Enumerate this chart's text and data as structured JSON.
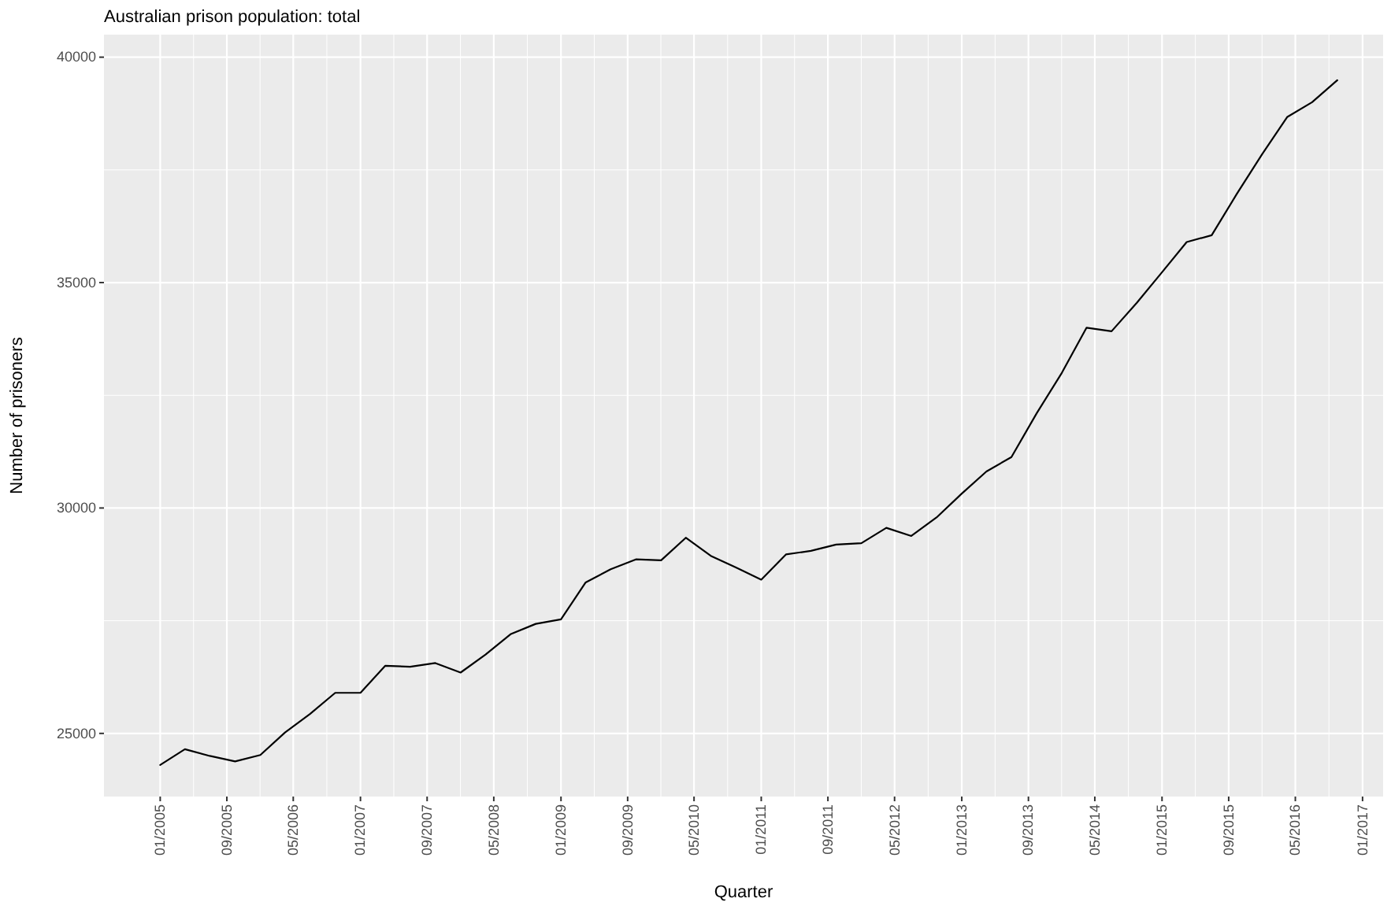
{
  "chart_data": {
    "type": "line",
    "title": "Australian prison population: total",
    "xlabel": "Quarter",
    "ylabel": "Number of prisoners",
    "x": [
      "2005-01",
      "2005-04",
      "2005-07",
      "2005-10",
      "2006-01",
      "2006-04",
      "2006-07",
      "2006-10",
      "2007-01",
      "2007-04",
      "2007-07",
      "2007-10",
      "2008-01",
      "2008-04",
      "2008-07",
      "2008-10",
      "2009-01",
      "2009-04",
      "2009-07",
      "2009-10",
      "2010-01",
      "2010-04",
      "2010-07",
      "2010-10",
      "2011-01",
      "2011-04",
      "2011-07",
      "2011-10",
      "2012-01",
      "2012-04",
      "2012-07",
      "2012-10",
      "2013-01",
      "2013-04",
      "2013-07",
      "2013-10",
      "2014-01",
      "2014-04",
      "2014-07",
      "2014-10",
      "2015-01",
      "2015-04",
      "2015-07",
      "2015-10",
      "2016-01",
      "2016-04",
      "2016-07",
      "2016-10"
    ],
    "series": [
      {
        "color": "#000000",
        "values": [
          24300,
          24650,
          24500,
          24380,
          24520,
          25020,
          25430,
          25900,
          25900,
          26500,
          26480,
          26560,
          26350,
          26750,
          27200,
          27430,
          27530,
          28350,
          28640,
          28860,
          28840,
          29340,
          28940,
          28680,
          28410,
          28970,
          29050,
          29190,
          29220,
          29560,
          29380,
          29790,
          30320,
          30810,
          31130,
          32100,
          33000,
          34000,
          33920,
          34550,
          35230,
          35900,
          36050,
          36970,
          37850,
          38670,
          39000,
          39490
        ]
      }
    ],
    "xlim": [
      "2004-06-10",
      "2017-03-17"
    ],
    "xticks": [
      {
        "value": "2005-01",
        "label": "01/2005"
      },
      {
        "value": "2005-09",
        "label": "09/2005"
      },
      {
        "value": "2006-05",
        "label": "05/2006"
      },
      {
        "value": "2007-01",
        "label": "01/2007"
      },
      {
        "value": "2007-09",
        "label": "09/2007"
      },
      {
        "value": "2008-05",
        "label": "05/2008"
      },
      {
        "value": "2009-01",
        "label": "01/2009"
      },
      {
        "value": "2009-09",
        "label": "09/2009"
      },
      {
        "value": "2010-05",
        "label": "05/2010"
      },
      {
        "value": "2011-01",
        "label": "01/2011"
      },
      {
        "value": "2011-09",
        "label": "09/2011"
      },
      {
        "value": "2012-05",
        "label": "05/2012"
      },
      {
        "value": "2013-01",
        "label": "01/2013"
      },
      {
        "value": "2013-09",
        "label": "09/2013"
      },
      {
        "value": "2014-05",
        "label": "05/2014"
      },
      {
        "value": "2015-01",
        "label": "01/2015"
      },
      {
        "value": "2015-09",
        "label": "09/2015"
      },
      {
        "value": "2016-05",
        "label": "05/2016"
      },
      {
        "value": "2017-01",
        "label": "01/2017"
      }
    ],
    "ylim": [
      23600,
      40500
    ],
    "yticks": [
      25000,
      30000,
      35000,
      40000
    ],
    "grid": true,
    "marker": "none",
    "line_style": "solid"
  }
}
